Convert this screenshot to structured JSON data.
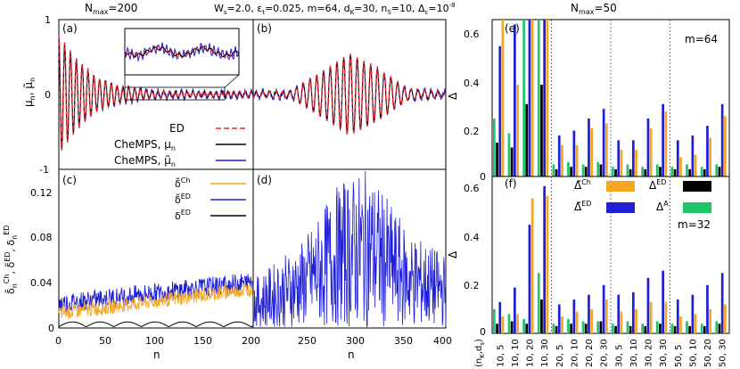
{
  "figure": {
    "left_title": "N",
    "left_title_sub": "max",
    "left_title_val": "=200",
    "center_title": "W_s=2.0, ε_t=0.025, m=64, d_K=30, n_S=10, Δ_c=10^-8",
    "right_title": "N",
    "right_title_sub": "max",
    "right_title_val": "=50"
  },
  "chart_data": [
    {
      "panel": "(a)",
      "type": "line",
      "xlim": [
        0,
        200
      ],
      "ylim": [
        -1,
        1
      ],
      "yticks": [
        -1,
        0,
        1
      ],
      "ylabel": "μn, μ̃n",
      "legend": [
        "ED",
        "CheMPS, μn",
        "CheMPS, μ̃n"
      ],
      "colors": {
        "ED": "#e8201f",
        "CheMPS_mu": "#000000",
        "CheMPS_mu_tilde": "#1f1fd8"
      },
      "series": [
        {
          "name": "ED",
          "envelope": [
            [
              0,
              0.8
            ],
            [
              20,
              0.45
            ],
            [
              40,
              0.22
            ],
            [
              60,
              0.12
            ],
            [
              100,
              0.05
            ],
            [
              150,
              0.04
            ],
            [
              200,
              0.05
            ]
          ],
          "period": 6
        }
      ]
    },
    {
      "panel": "(b)",
      "type": "line",
      "xlim": [
        200,
        400
      ],
      "ylim": [
        -1,
        1
      ],
      "series": [
        {
          "name": "ED",
          "envelope": [
            [
              200,
              0.04
            ],
            [
              240,
              0.05
            ],
            [
              270,
              0.3
            ],
            [
              300,
              0.55
            ],
            [
              330,
              0.35
            ],
            [
              360,
              0.08
            ],
            [
              400,
              0.04
            ]
          ],
          "period": 7
        }
      ]
    },
    {
      "panel": "(c)",
      "type": "line",
      "xlim": [
        0,
        200
      ],
      "ylim": [
        0,
        0.13
      ],
      "yticks": [
        0,
        0.04,
        0.08,
        0.12
      ],
      "xticks": [
        0,
        50,
        100,
        150,
        200
      ],
      "xlabel": "n",
      "ylabel": "δ̃n^Ch, δ̃n^ED, δn^ED",
      "legend": [
        "δ̃Ch",
        "δ̃ED",
        "δED"
      ],
      "colors": {
        "ch": "#f5a623",
        "ed_tilde": "#1f1fd8",
        "ed": "#000000"
      }
    },
    {
      "panel": "(d)",
      "type": "line",
      "xlim": [
        200,
        400
      ],
      "ylim": [
        0,
        0.13
      ],
      "xticks": [
        250,
        300,
        350,
        400
      ],
      "xlabel": "n"
    },
    {
      "panel": "(e)",
      "type": "bar",
      "ylim": [
        0,
        0.65
      ],
      "yticks": [
        0,
        0.2,
        0.4,
        0.6
      ],
      "ylabel": "Δ",
      "note": "m=64",
      "categories": [
        "10, 5",
        "10, 10",
        "10, 20",
        "10, 30",
        "20, 5",
        "20, 10",
        "20, 20",
        "20, 30",
        "30, 5",
        "30, 10",
        "30, 20",
        "30, 30",
        "50, 5",
        "50, 10",
        "50, 20",
        "50, 30"
      ],
      "series": [
        {
          "name": "ΔA",
          "color": "#22c46a",
          "values": [
            0.24,
            0.18,
            0.65,
            0.65,
            0.05,
            0.06,
            0.05,
            0.06,
            0.04,
            0.05,
            0.04,
            0.05,
            0.04,
            0.05,
            0.04,
            0.05
          ]
        },
        {
          "name": "ΔED",
          "color": "#000000",
          "values": [
            0.14,
            0.12,
            0.3,
            0.38,
            0.03,
            0.04,
            0.04,
            0.05,
            0.03,
            0.03,
            0.03,
            0.04,
            0.03,
            0.03,
            0.03,
            0.04
          ]
        },
        {
          "name": "Δ̃ED",
          "color": "#1f1fd8",
          "values": [
            0.54,
            0.63,
            0.65,
            0.65,
            0.17,
            0.19,
            0.24,
            0.28,
            0.15,
            0.15,
            0.24,
            0.3,
            0.15,
            0.17,
            0.21,
            0.3
          ]
        },
        {
          "name": "Δ̃Ch",
          "color": "#f5a623",
          "values": [
            0.65,
            0.38,
            0.65,
            0.65,
            0.13,
            0.13,
            0.2,
            0.22,
            0.11,
            0.11,
            0.2,
            0.27,
            0.08,
            0.09,
            0.16,
            0.25
          ]
        }
      ]
    },
    {
      "panel": "(f)",
      "type": "bar",
      "ylim": [
        0,
        0.65
      ],
      "yticks": [
        0,
        0.2,
        0.4,
        0.6
      ],
      "ylabel": "Δ",
      "xlabel": "(n_K,d_s)",
      "note": "m=32",
      "legend": [
        "Δ̃Ch",
        "ΔED",
        "Δ̃ED",
        "ΔA"
      ],
      "categories": [
        "10, 5",
        "10, 10",
        "10, 20",
        "10, 30",
        "20, 5",
        "20, 10",
        "20, 20",
        "20, 30",
        "30, 5",
        "30, 10",
        "30, 20",
        "30, 30",
        "50, 5",
        "50, 10",
        "50, 20",
        "50, 30"
      ],
      "series": [
        {
          "name": "ΔA",
          "color": "#22c46a",
          "values": [
            0.1,
            0.08,
            0.06,
            0.25,
            0.04,
            0.06,
            0.05,
            0.05,
            0.04,
            0.05,
            0.04,
            0.05,
            0.04,
            0.05,
            0.04,
            0.05
          ]
        },
        {
          "name": "ΔED",
          "color": "#000000",
          "values": [
            0.04,
            0.05,
            0.04,
            0.14,
            0.03,
            0.04,
            0.04,
            0.05,
            0.03,
            0.03,
            0.03,
            0.04,
            0.03,
            0.03,
            0.03,
            0.04
          ]
        },
        {
          "name": "Δ̃ED",
          "color": "#1f1fd8",
          "values": [
            0.13,
            0.19,
            0.45,
            0.61,
            0.12,
            0.14,
            0.16,
            0.2,
            0.16,
            0.17,
            0.23,
            0.26,
            0.14,
            0.16,
            0.2,
            0.25
          ]
        },
        {
          "name": "Δ̃Ch",
          "color": "#f5a623",
          "values": [
            0.07,
            0.08,
            0.56,
            0.57,
            0.07,
            0.09,
            0.1,
            0.14,
            0.09,
            0.1,
            0.13,
            0.13,
            0.07,
            0.08,
            0.1,
            0.12
          ]
        }
      ]
    }
  ],
  "labels": {
    "a": "(a)",
    "b": "(b)",
    "c": "(c)",
    "d": "(d)",
    "e": "(e)",
    "f": "(f)",
    "m64": "m=64",
    "m32": "m=32",
    "leg_ed": "ED",
    "leg_mu": "CheMPS, μ",
    "leg_mu_sub": "n",
    "leg_mut": "CheMPS, μ̃",
    "leg_mut_sub": "n",
    "delta": "Δ",
    "n": "n"
  }
}
